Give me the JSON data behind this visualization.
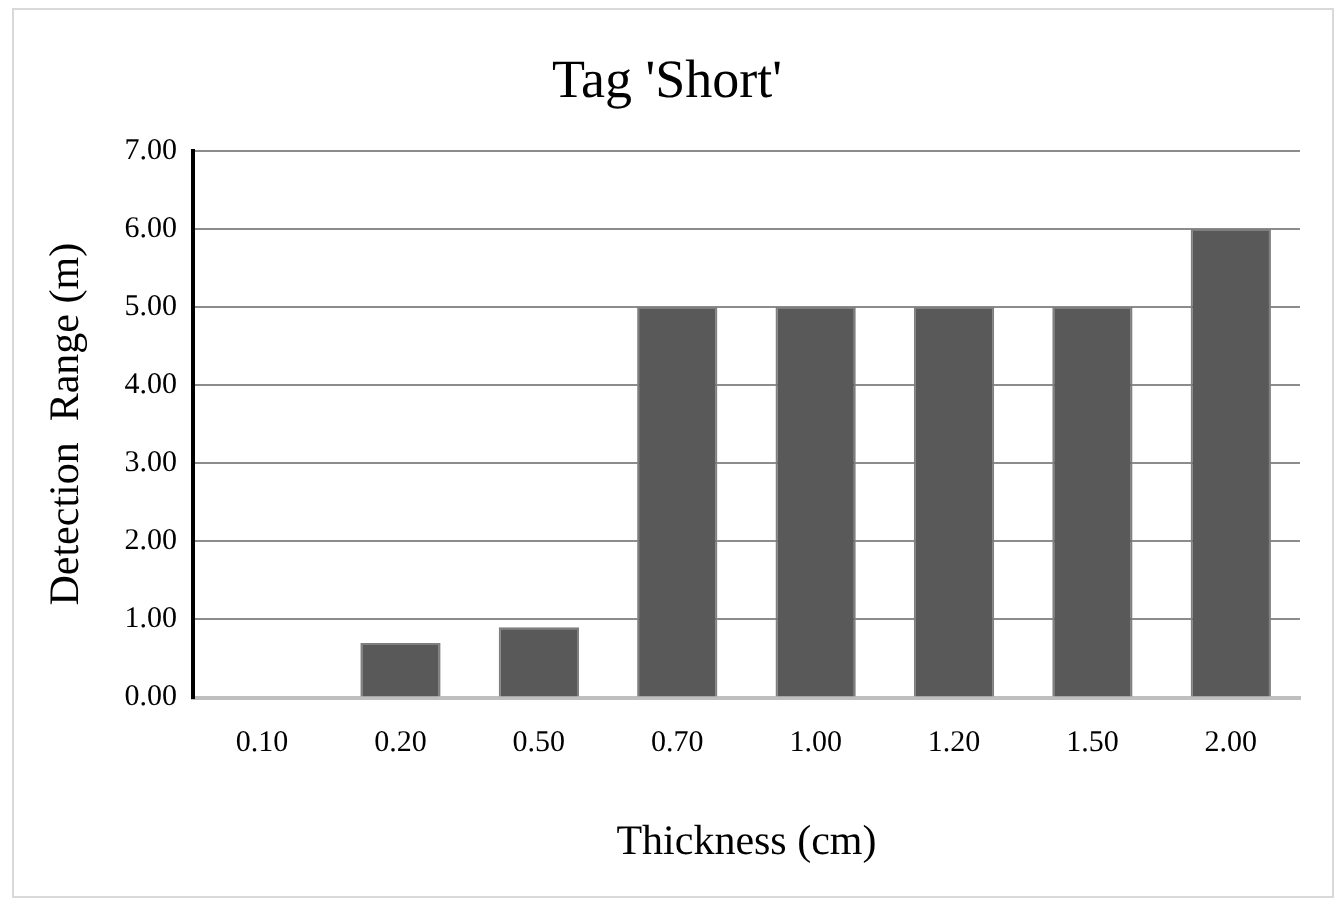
{
  "chart_data": {
    "type": "bar",
    "title": "Tag 'Short'",
    "xlabel": "Thickness (cm)",
    "ylabel": "Detection  Range (m)",
    "categories": [
      "0.10",
      "0.20",
      "0.50",
      "0.70",
      "1.00",
      "1.20",
      "1.50",
      "2.00"
    ],
    "values": [
      0,
      0.7,
      0.9,
      5,
      5,
      5,
      5,
      6
    ],
    "color": "#595959",
    "ylim": [
      0,
      7
    ],
    "yticks": [
      {
        "value": 0,
        "label": "0.00"
      },
      {
        "value": 1,
        "label": "1.00"
      },
      {
        "value": 2,
        "label": "2.00"
      },
      {
        "value": 3,
        "label": "3.00"
      },
      {
        "value": 4,
        "label": "4.00"
      },
      {
        "value": 5,
        "label": "5.00"
      },
      {
        "value": 6,
        "label": "6.00"
      },
      {
        "value": 7,
        "label": "7.00"
      }
    ],
    "grid": "y",
    "legend": false
  }
}
